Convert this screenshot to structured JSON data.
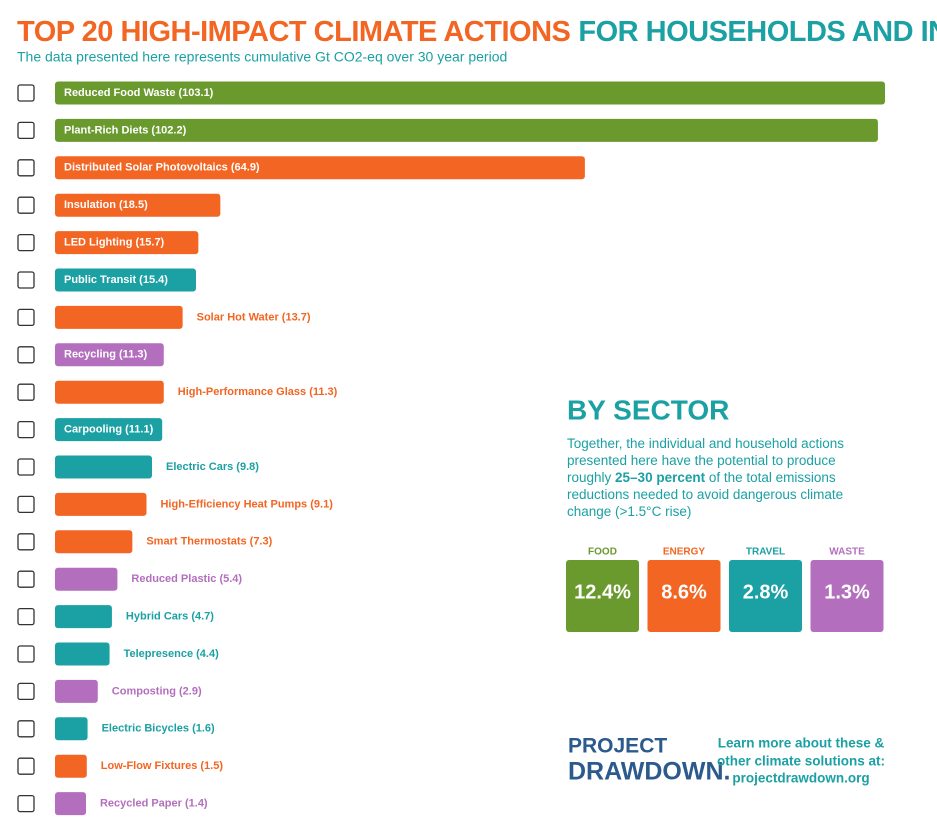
{
  "chart_data": {
    "type": "bar",
    "orientation": "horizontal",
    "title_parts": [
      {
        "text": "TOP 20 HIGH-IMPACT CLIMATE ACTIONS",
        "color": "#f26522"
      },
      {
        "text": "FOR HOUSEHOLDS AND INDIVIDUALS",
        "color": "#1ba0a4"
      }
    ],
    "subtitle": "The data presented here represents cumulative Gt CO2-eq over 30 year period",
    "categories": [
      "Reduced Food Waste (103.1)",
      "Plant-Rich Diets (102.2)",
      "Distributed Solar Photovoltaics (64.9)",
      "Insulation (18.5)",
      "LED Lighting (15.7)",
      "Public Transit (15.4)",
      "Solar Hot Water (13.7)",
      "Recycling (11.3)",
      "High-Performance Glass (11.3)",
      "Carpooling (11.1)",
      "Electric Cars (9.8)",
      "High-Efficiency Heat Pumps (9.1)",
      "Smart Thermostats (7.3)",
      "Reduced Plastic (5.4)",
      "Hybrid Cars (4.7)",
      "Telepresence (4.4)",
      "Composting (2.9)",
      "Electric Bicycles (1.6)",
      "Low-Flow Fixtures (1.5)",
      "Recycled Paper (1.4)"
    ],
    "values": [
      103.1,
      102.2,
      64.9,
      18.5,
      15.7,
      15.4,
      13.7,
      11.3,
      11.3,
      11.1,
      9.8,
      9.1,
      7.3,
      5.4,
      4.7,
      4.4,
      2.9,
      1.6,
      1.5,
      1.4
    ],
    "colors": [
      "#6a9a2e",
      "#6a9a2e",
      "#f26522",
      "#f26522",
      "#f26522",
      "#1ba0a4",
      "#f26522",
      "#b36fbd",
      "#f26522",
      "#1ba0a4",
      "#1ba0a4",
      "#f26522",
      "#f26522",
      "#b36fbd",
      "#1ba0a4",
      "#1ba0a4",
      "#b36fbd",
      "#1ba0a4",
      "#f26522",
      "#b36fbd"
    ]
  },
  "sector_panel": {
    "title": "BY SECTOR",
    "text_before": "Together, the individual and household actions presented here have the potential to produce roughly ",
    "text_bold": "25–30 percent",
    "text_after": " of the total emissions reductions needed to avoid dangerous climate change (>1.5°C rise)",
    "sectors": [
      {
        "name": "FOOD",
        "share": "12.4%",
        "color": "#6a9a2e"
      },
      {
        "name": "ENERGY",
        "share": "8.6%",
        "color": "#f26522"
      },
      {
        "name": "TRAVEL",
        "share": "2.8%",
        "color": "#1ba0a4"
      },
      {
        "name": "WASTE",
        "share": "1.3%",
        "color": "#b36fbd"
      }
    ]
  },
  "footer": {
    "logo_lines": [
      "PROJECT",
      "DRAWDOWN."
    ],
    "link_lines": [
      "Learn more about these &",
      "other climate solutions at:",
      "projectdrawdown.org"
    ]
  }
}
